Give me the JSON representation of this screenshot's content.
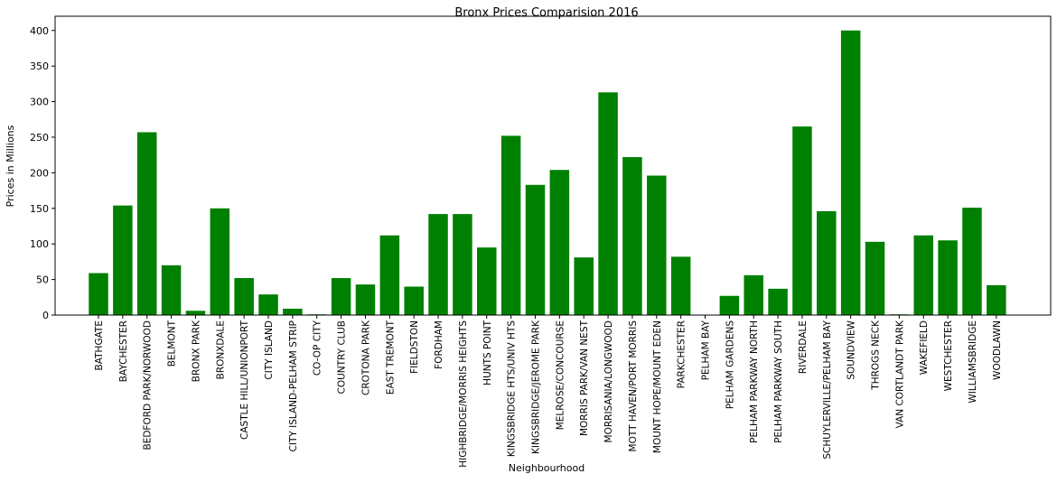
{
  "chart_data": {
    "type": "bar",
    "title": "Bronx Prices Comparision 2016",
    "xlabel": "Neighbourhood",
    "ylabel": "Prices in Millions",
    "ylim": [
      0,
      420
    ],
    "yticks": [
      0,
      50,
      100,
      150,
      200,
      250,
      300,
      350,
      400
    ],
    "grid": false,
    "bar_color": "#008000",
    "categories": [
      "BATHGATE",
      "BAYCHESTER",
      "BEDFORD PARK/NORWOOD",
      "BELMONT",
      "BRONX PARK",
      "BRONXDALE",
      "CASTLE HILL/UNIONPORT",
      "CITY ISLAND",
      "CITY ISLAND-PELHAM STRIP",
      "CO-OP CITY",
      "COUNTRY CLUB",
      "CROTONA PARK",
      "EAST TREMONT",
      "FIELDSTON",
      "FORDHAM",
      "HIGHBRIDGE/MORRIS HEIGHTS",
      "HUNTS POINT",
      "KINGSBRIDGE HTS/UNIV HTS",
      "KINGSBRIDGE/JEROME PARK",
      "MELROSE/CONCOURSE",
      "MORRIS PARK/VAN NEST",
      "MORRISANIA/LONGWOOD",
      "MOTT HAVEN/PORT MORRIS",
      "MOUNT HOPE/MOUNT EDEN",
      "PARKCHESTER",
      "PELHAM BAY",
      "PELHAM GARDENS",
      "PELHAM PARKWAY NORTH",
      "PELHAM PARKWAY SOUTH",
      "RIVERDALE",
      "SCHUYLERVILLE/PELHAM BAY",
      "SOUNDVIEW",
      "THROGS NECK",
      "VAN CORTLANDT PARK",
      "WAKEFIELD",
      "WESTCHESTER",
      "WILLIAMSBRIDGE",
      "WOODLAWN"
    ],
    "values": [
      59,
      154,
      257,
      70,
      6,
      150,
      52,
      29,
      9,
      1,
      52,
      43,
      112,
      40,
      142,
      142,
      95,
      252,
      183,
      204,
      81,
      313,
      222,
      196,
      82,
      0,
      27,
      56,
      37,
      265,
      146,
      400,
      103,
      1,
      112,
      105,
      151,
      42
    ]
  }
}
